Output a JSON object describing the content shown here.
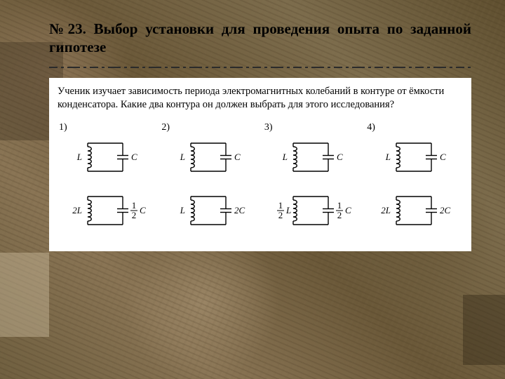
{
  "title": "№23. Выбор установки для проведения опыта по заданной гипотезе",
  "question": "Ученик изучает зависимость периода электромагнитных колебаний в контуре от ёмкости конденсатора. Какие два контура он должен выбрать для этого исследования?",
  "options": [
    {
      "num": "1)",
      "top": {
        "L": "L",
        "C": "C"
      },
      "bottom": {
        "L": "2L",
        "C_num": "1",
        "C_den": "2",
        "C_suffix": "C"
      }
    },
    {
      "num": "2)",
      "top": {
        "L": "L",
        "C": "C"
      },
      "bottom": {
        "L": "L",
        "C": "2C"
      }
    },
    {
      "num": "3)",
      "top": {
        "L": "L",
        "C": "C"
      },
      "bottom": {
        "L_num": "1",
        "L_den": "2",
        "L_suffix": "L",
        "C_num": "1",
        "C_den": "2",
        "C_suffix": "C"
      }
    },
    {
      "num": "4)",
      "top": {
        "L": "L",
        "C": "C"
      },
      "bottom": {
        "L": "2L",
        "C": "2C"
      }
    }
  ],
  "circuit_style": {
    "width": 120,
    "height": 60,
    "stroke": "#000000",
    "stroke_width": 1.4,
    "coil_turns": 5,
    "cap_gap": 5,
    "label_font": "italic 13px Times New Roman",
    "frac_font": "13px Times New Roman"
  }
}
